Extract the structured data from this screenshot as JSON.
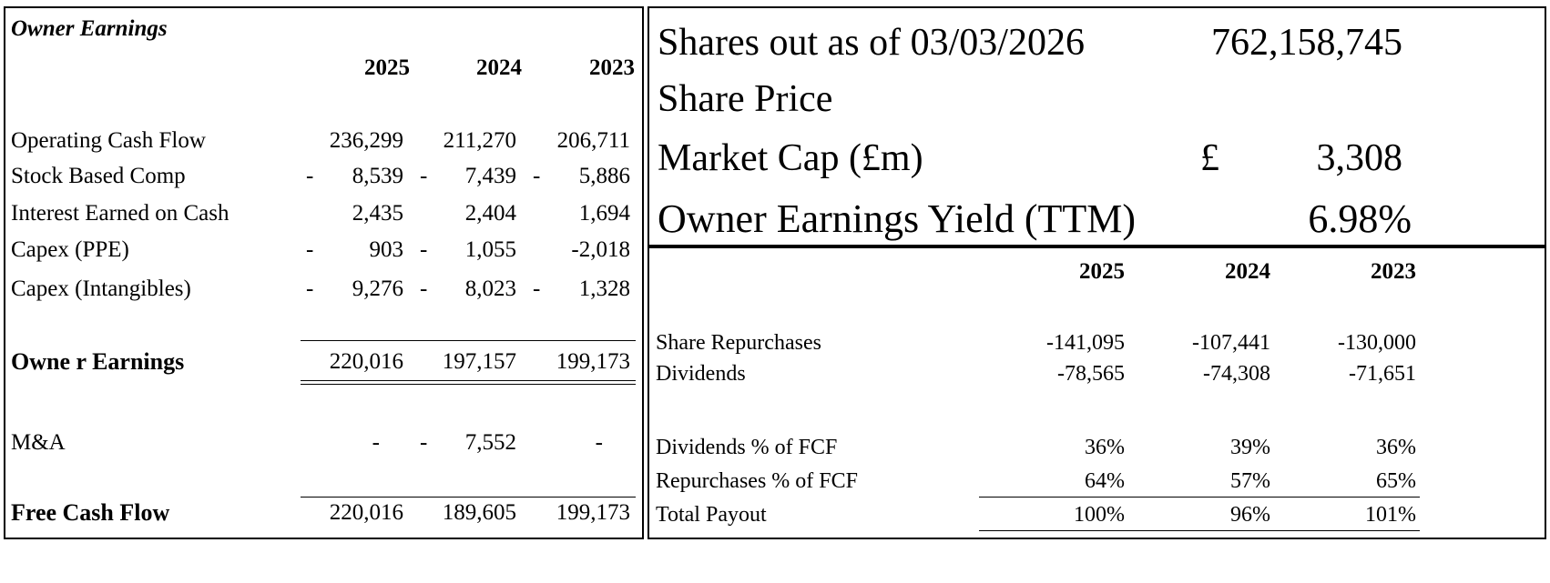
{
  "owner_earnings": {
    "title": "Owner Earnings",
    "years": [
      "2025",
      "2024",
      "2023"
    ],
    "rows": [
      {
        "label": "Operating Cash Flow",
        "values": [
          {
            "sign": "",
            "v": "236,299"
          },
          {
            "sign": "",
            "v": "211,270"
          },
          {
            "sign": "",
            "v": "206,711"
          }
        ]
      },
      {
        "label": "Stock Based Comp",
        "values": [
          {
            "sign": "-",
            "v": "8,539"
          },
          {
            "sign": "-",
            "v": "7,439"
          },
          {
            "sign": "-",
            "v": "5,886"
          }
        ]
      },
      {
        "label": "Interest Earned on Cash",
        "values": [
          {
            "sign": "",
            "v": "2,435"
          },
          {
            "sign": "",
            "v": "2,404"
          },
          {
            "sign": "",
            "v": "1,694"
          }
        ]
      },
      {
        "label": "Capex (PPE)",
        "values": [
          {
            "sign": "-",
            "v": "903"
          },
          {
            "sign": "-",
            "v": "1,055"
          },
          {
            "sign": "",
            "v": "-2,018"
          }
        ]
      },
      {
        "label": "Capex (Intangibles)",
        "values": [
          {
            "sign": "-",
            "v": "9,276"
          },
          {
            "sign": "-",
            "v": "8,023"
          },
          {
            "sign": "-",
            "v": "1,328"
          }
        ]
      }
    ],
    "total": {
      "label": "Owne r Earnings",
      "values": [
        "220,016",
        "197,157",
        "199,173"
      ]
    },
    "ma": {
      "label": "M&A",
      "values": [
        {
          "sign": "",
          "v": "-"
        },
        {
          "sign": "-",
          "v": "7,552"
        },
        {
          "sign": "",
          "v": "-"
        }
      ]
    },
    "fcf": {
      "label": "Free Cash Flow",
      "values": [
        "220,016",
        "189,605",
        "199,173"
      ]
    }
  },
  "summary": {
    "shares_label": "Shares out as of 03/03/2026",
    "shares_value": "762,158,745",
    "price_label": "Share Price",
    "mcap_label": "Market Cap (£m)",
    "mcap_currency": "£",
    "mcap_value": "3,308",
    "yield_label": "Owner Earnings Yield (TTM)",
    "yield_value": "6.98%"
  },
  "payout": {
    "years": [
      "2025",
      "2024",
      "2023"
    ],
    "rows": [
      {
        "label": "Share Repurchases",
        "values": [
          "-141,095",
          "-107,441",
          "-130,000"
        ]
      },
      {
        "label": "Dividends",
        "values": [
          "-78,565",
          "-74,308",
          "-71,651"
        ]
      },
      {
        "label": "Dividends % of FCF",
        "values": [
          "36%",
          "39%",
          "36%"
        ]
      },
      {
        "label": "Repurchases % of FCF",
        "values": [
          "64%",
          "57%",
          "65%"
        ]
      },
      {
        "label": "Total Payout",
        "values": [
          "100%",
          "96%",
          "101%"
        ]
      }
    ]
  }
}
